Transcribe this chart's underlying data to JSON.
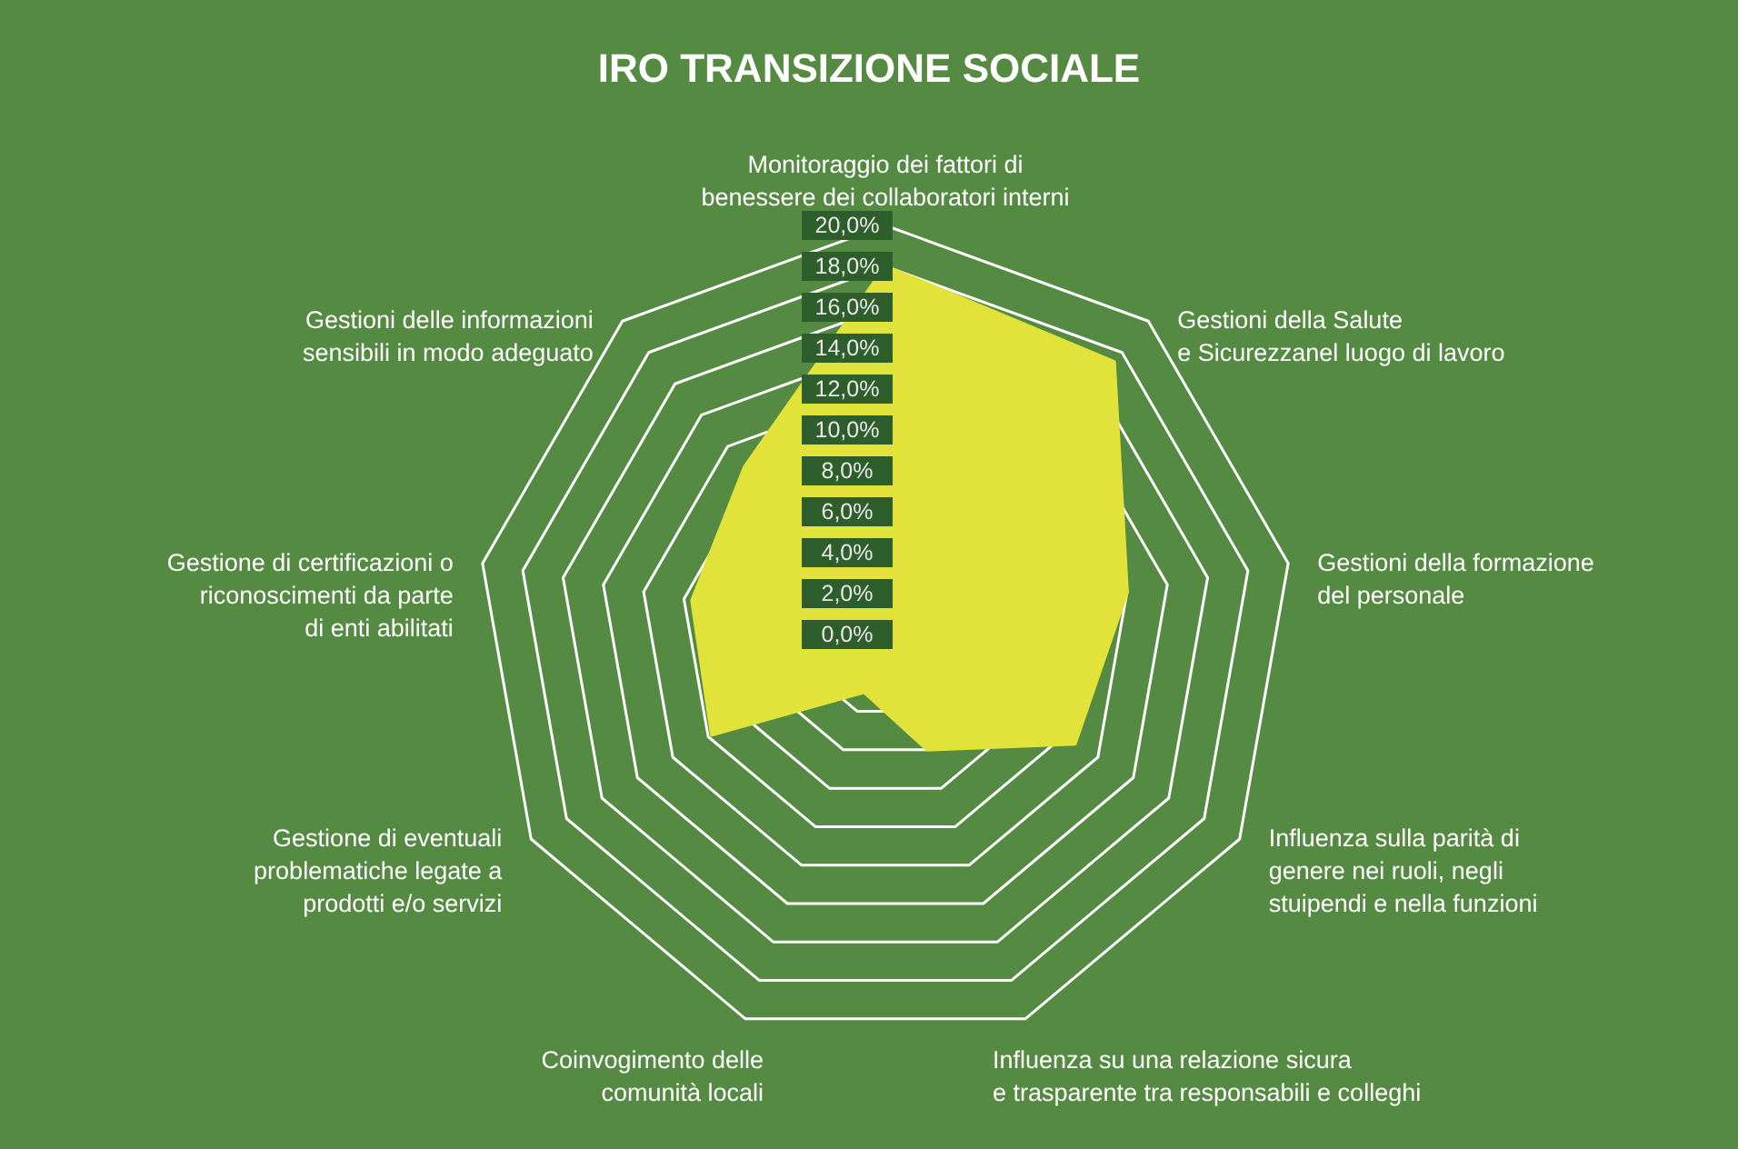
{
  "chart_data": {
    "type": "radar",
    "title": "IRO TRANSIZIONE SOCIALE",
    "categories": [
      "Monitoraggio dei fattori di\nbenessere dei collaboratori interni",
      "Gestioni della Salute\ne Sicurezzanel luogo di lavoro",
      "Gestioni della formazione\ndel personale",
      "Influenza sulla parità di\ngenere nei ruoli, negli\nstuipendi e nella funzioni",
      "Influenza su una relazione sicura\ne trasparente tra responsabili e colleghi",
      "Coinvogimento delle\ncomunità locali",
      "Gestione di eventuali\nproblematiche legate a\nprodotti e/o servizi",
      "Gestione di certificazioni o\nriconoscimenti da parte\ndi enti abilitati",
      "Gestioni delle informazioni\nsensibili in modo adeguato"
    ],
    "series": [
      {
        "color": "#e1e33a",
        "values": [
          18,
          17.4,
          12,
          10.7,
          6,
          3,
          9.8,
          9.6,
          10.7
        ]
      }
    ],
    "ylim": [
      0,
      20
    ],
    "yticks": [
      {
        "value": 0,
        "label": "0,0%"
      },
      {
        "value": 2,
        "label": "2,0%"
      },
      {
        "value": 4,
        "label": "4,0%"
      },
      {
        "value": 6,
        "label": "6,0%"
      },
      {
        "value": 8,
        "label": "8,0%"
      },
      {
        "value": 10,
        "label": "10,0%"
      },
      {
        "value": 12,
        "label": "12,0%"
      },
      {
        "value": 14,
        "label": "14,0%"
      },
      {
        "value": 16,
        "label": "16,0%"
      },
      {
        "value": 18,
        "label": "18,0%"
      },
      {
        "value": 20,
        "label": "20,0%"
      }
    ],
    "grid": true
  }
}
